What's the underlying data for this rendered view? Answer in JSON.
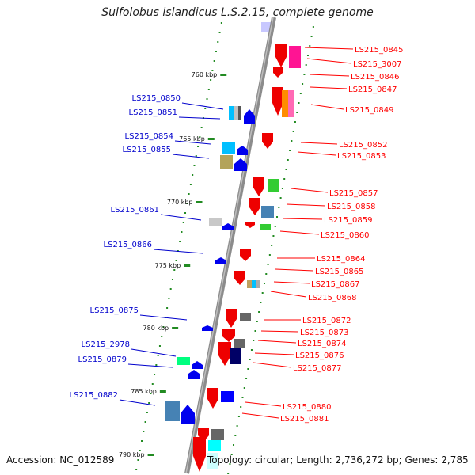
{
  "title": "Sulfolobus islandicus L.S.2.15, complete genome",
  "accession": "Accession: NC_012589",
  "topology": "Topology: circular; Length: 2,736,272 bp; Genes: 2,785",
  "kbp_labels": [
    "760 kbp",
    "765 kbp",
    "770 kbp",
    "775 kbp",
    "780 kbp",
    "785 kbp",
    "790 kbp"
  ],
  "right_labels": [
    "LS215_0845",
    "LS215_3007",
    "LS215_0846",
    "LS215_0847",
    "LS215_0849",
    "LS215_0852",
    "LS215_0853",
    "LS215_0857",
    "LS215_0858",
    "LS215_0859",
    "LS215_0860",
    "LS215_0864",
    "LS215_0865",
    "LS215_0867",
    "LS215_0868",
    "LS215_0872",
    "LS215_0873",
    "LS215_0874",
    "LS215_0876",
    "LS215_0877",
    "LS215_0880",
    "LS215_0881"
  ],
  "left_labels": [
    "LS215_0850",
    "LS215_0851",
    "LS215_0854",
    "LS215_0855",
    "LS215_0861",
    "LS215_0866",
    "LS215_0875",
    "LS215_2978",
    "LS215_0879",
    "LS215_0882"
  ],
  "colors": {
    "right_strand": "#ff0000",
    "left_strand": "#0000cc",
    "axis": "#8c8c8c",
    "tick": "#228b22"
  }
}
